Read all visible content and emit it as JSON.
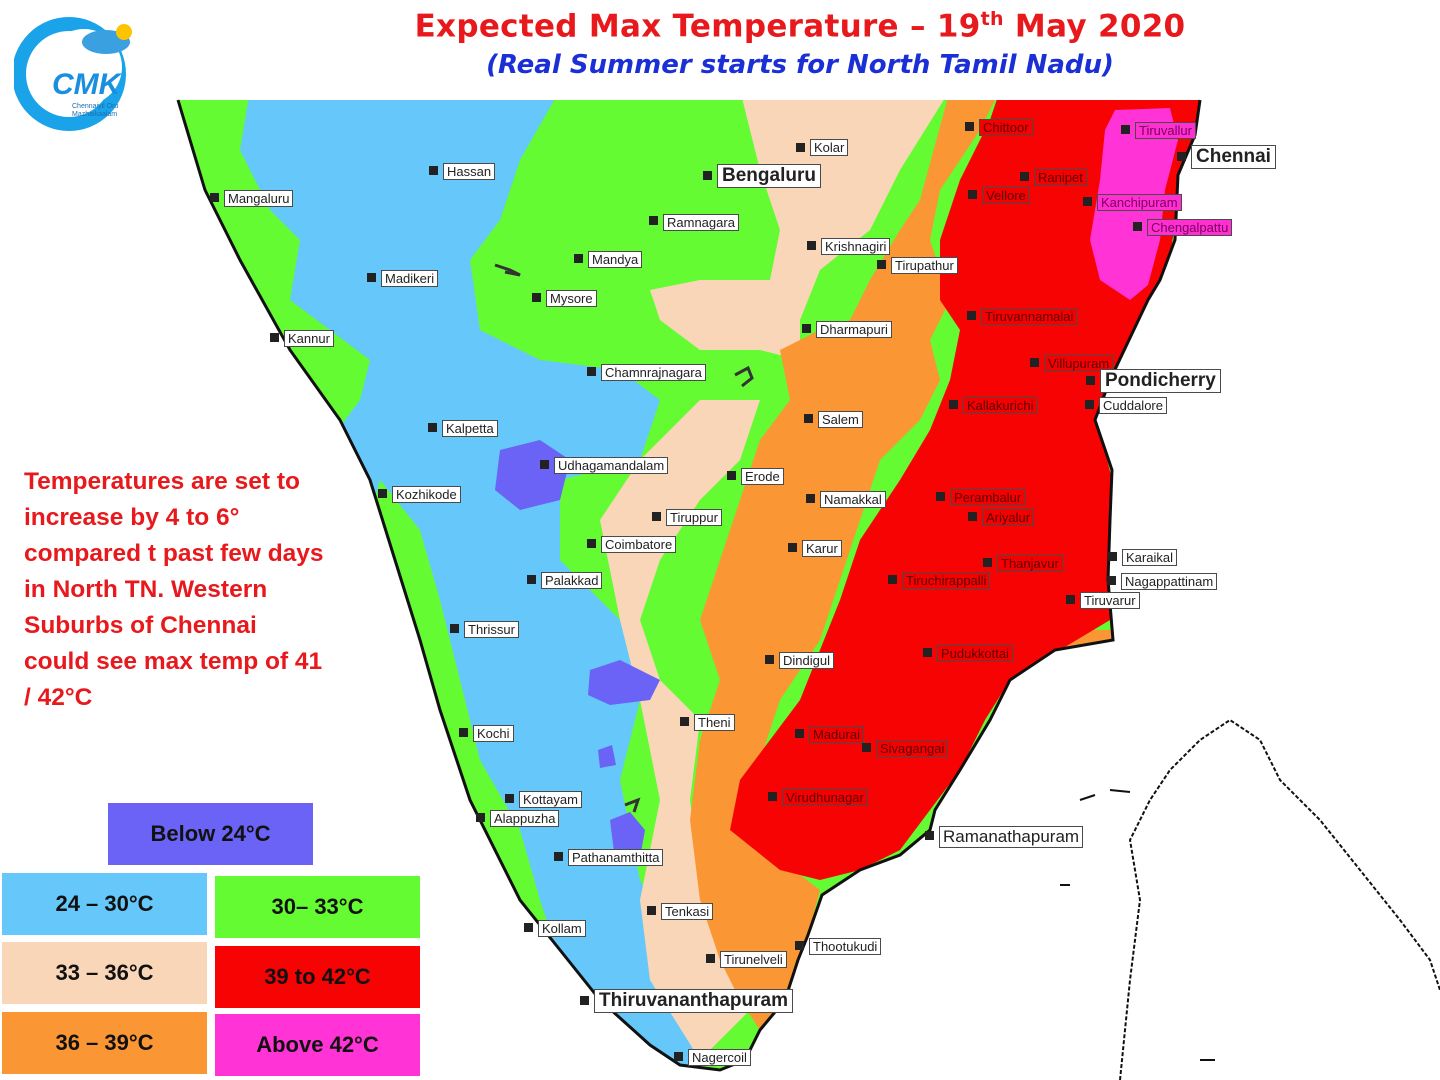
{
  "title": {
    "main_prefix": "Expected Max Temperature – 19",
    "main_sup": "th",
    "main_suffix": " May 2020",
    "subtitle": "(Real Summer starts for North Tamil Nadu)"
  },
  "logo": {
    "letters": "CMK",
    "tagline_1": "Chennaiyil Oru",
    "tagline_2": "Mazhaikaalam"
  },
  "note": "Temperatures  are set to increase by 4 to 6° compared t past few days in North TN. Western Suburbs of Chennai could see max temp of 41 / 42°C",
  "legend": [
    {
      "label": "Below 24°C",
      "color": "#6a63f5"
    },
    {
      "label": "24 – 30°C",
      "color": "#66c8fa"
    },
    {
      "label": "30– 33°C",
      "color": "#64fb32"
    },
    {
      "label": "33 – 36°C",
      "color": "#fad6b8"
    },
    {
      "label": "39 to 42°C",
      "color": "#f70303"
    },
    {
      "label": "36 – 39°C",
      "color": "#fa9634"
    },
    {
      "label": "Above 42°C",
      "color": "#ff33d6"
    }
  ],
  "places": [
    "Mangaluru",
    "Hassan",
    "Bengaluru",
    "Kolar",
    "Ramnagara",
    "Krishnagiri",
    "Tirupathur",
    "Mandya",
    "Madikeri",
    "Mysore",
    "Kannur",
    "Dharmapuri",
    "Chamnrajnagara",
    "Salem",
    "Kalpetta",
    "Udhagamandalam",
    "Erode",
    "Kozhikode",
    "Namakkal",
    "Tiruppur",
    "Coimbatore",
    "Karur",
    "Palakkad",
    "Thrissur",
    "Dindigul",
    "Theni",
    "Kochi",
    "Madurai",
    "Sivagangai",
    "Virudhunagar",
    "Kottayam",
    "Alappuzha",
    "Ramanathapuram",
    "Pathanamthitta",
    "Tenkasi",
    "Kollam",
    "Thootukudi",
    "Tirunelveli",
    "Thiruvananthapuram",
    "Nagercoil",
    "Chittoor",
    "Tiruvallur",
    "Chennai",
    "Ranipet",
    "Vellore",
    "Kanchipuram",
    "Chengalpattu",
    "Tiruvannamalai",
    "Villupuram",
    "Pondicherry",
    "Kallakurichi",
    "Cuddalore",
    "Perambalur",
    "Ariyalur",
    "Thanjavur",
    "Karaikal",
    "Tiruchirappalli",
    "Nagappattinam",
    "Tiruvarur",
    "Pudukkottai"
  ]
}
